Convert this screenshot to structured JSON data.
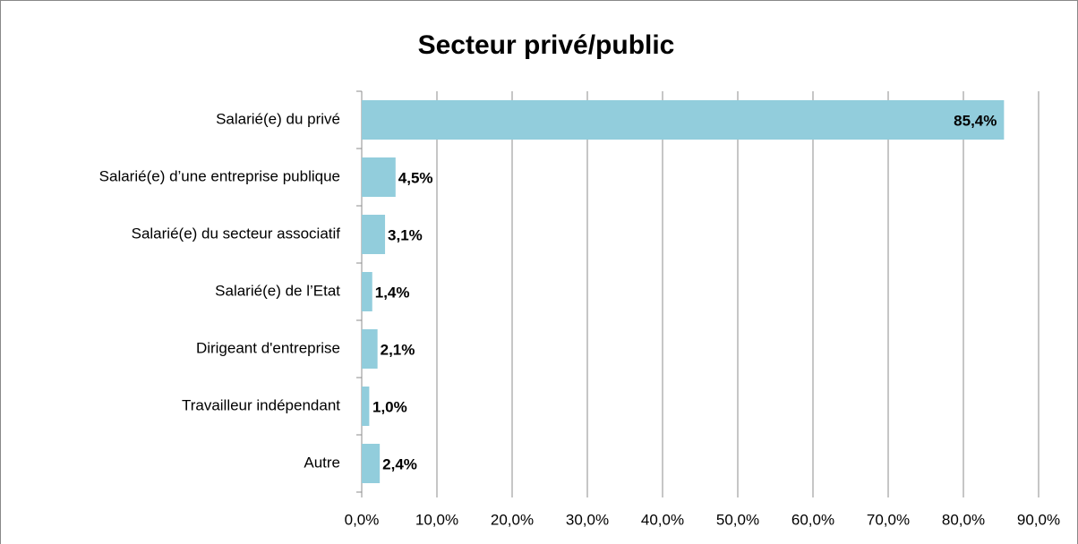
{
  "chart_data": {
    "type": "bar",
    "orientation": "horizontal",
    "title": "Secteur privé/public",
    "categories": [
      "Salarié(e) du privé",
      "Salarié(e) d’une entreprise publique",
      "Salarié(e) du secteur associatif",
      "Salarié(e) de l’Etat",
      "Dirigeant d'entreprise",
      "Travailleur indépendant",
      "Autre"
    ],
    "values": [
      85.4,
      4.5,
      3.1,
      1.4,
      2.1,
      1.0,
      2.4
    ],
    "value_labels": [
      "85,4%",
      "4,5%",
      "3,1%",
      "1,4%",
      "2,1%",
      "1,0%",
      "2,4%"
    ],
    "color": "#92cddc",
    "xlim": [
      0,
      90
    ],
    "xticks": [
      {
        "value": 0,
        "label": "0,0%"
      },
      {
        "value": 10,
        "label": "10,0%"
      },
      {
        "value": 20,
        "label": "20,0%"
      },
      {
        "value": 30,
        "label": "30,0%"
      },
      {
        "value": 40,
        "label": "40,0%"
      },
      {
        "value": 50,
        "label": "50,0%"
      },
      {
        "value": 60,
        "label": "60,0%"
      },
      {
        "value": 70,
        "label": "70,0%"
      },
      {
        "value": 80,
        "label": "80,0%"
      },
      {
        "value": 90,
        "label": "90,0%"
      }
    ],
    "grid": true
  }
}
